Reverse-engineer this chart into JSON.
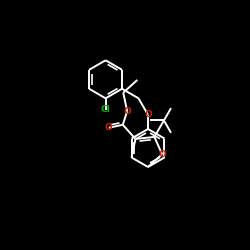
{
  "bg_color": "#000000",
  "bond_color": "#ffffff",
  "O_color": "#cc2200",
  "Cl_color": "#00bb00",
  "lw": 1.4,
  "atoms": {
    "Cl": {
      "label": "Cl",
      "color": "#00bb00"
    },
    "O1": {
      "label": "O",
      "color": "#cc2200"
    },
    "O2": {
      "label": "O",
      "color": "#cc2200"
    },
    "O3": {
      "label": "O",
      "color": "#cc2200"
    },
    "O4": {
      "label": "O",
      "color": "#cc2200"
    }
  }
}
